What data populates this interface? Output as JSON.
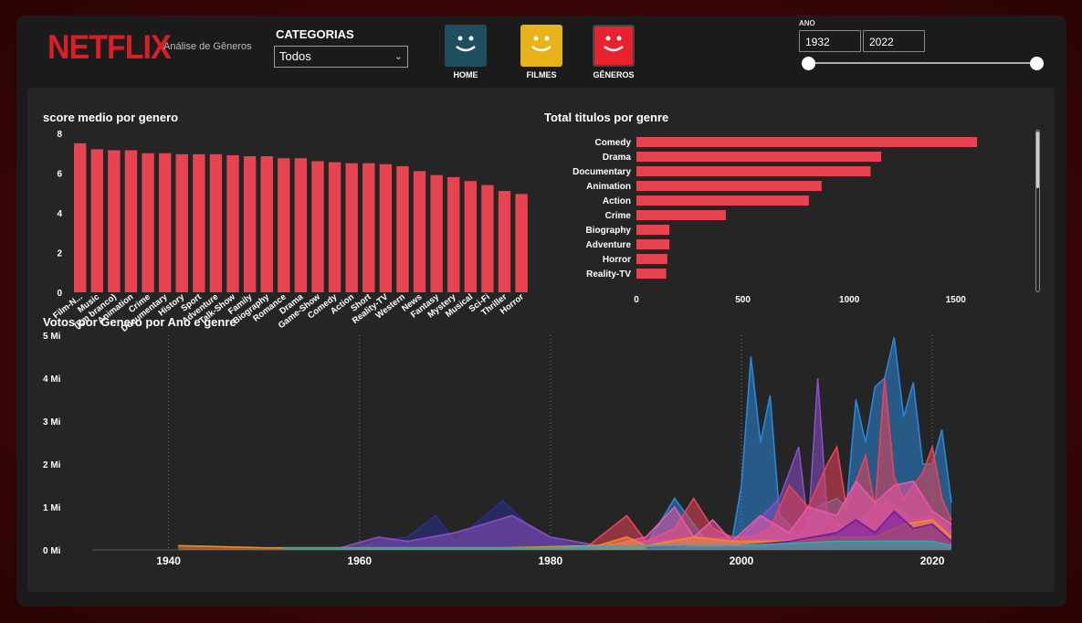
{
  "header": {
    "logo": "NETFLIX",
    "subtitle": "Análise de Gêneros",
    "category_label": "CATEGORIAS",
    "category_value": "Todos",
    "nav": [
      {
        "label": "HOME",
        "color": "#1f4e5f"
      },
      {
        "label": "FILMES",
        "color": "#e8b21a"
      },
      {
        "label": "GÊNEROS",
        "color": "#e8222e"
      }
    ],
    "year_label": "ANO",
    "year_from": "1932",
    "year_to": "2022"
  },
  "colors": {
    "accent": "#e84350",
    "background": "#252525"
  },
  "chart_data": [
    {
      "type": "bar",
      "title": "score medio por genero",
      "categories": [
        "Film-N...",
        "Music",
        "(Em branco)",
        "Animation",
        "Crime",
        "Documentary",
        "History",
        "Sport",
        "Adventure",
        "Talk-Show",
        "Family",
        "Biography",
        "Romance",
        "Drama",
        "Game-Show",
        "Comedy",
        "Action",
        "Short",
        "Reality-TV",
        "Western",
        "News",
        "Fantasy",
        "Mystery",
        "Musical",
        "Sci-Fi",
        "Thriller",
        "Horror"
      ],
      "values": [
        7.5,
        7.2,
        7.15,
        7.15,
        7.0,
        7.0,
        6.95,
        6.95,
        6.95,
        6.9,
        6.85,
        6.85,
        6.75,
        6.75,
        6.6,
        6.55,
        6.5,
        6.5,
        6.45,
        6.35,
        6.1,
        5.9,
        5.8,
        5.6,
        5.4,
        5.1,
        4.95
      ],
      "yticks": [
        "8",
        "6",
        "4",
        "2",
        "0"
      ],
      "ylim": [
        0,
        8
      ]
    },
    {
      "type": "bar",
      "orientation": "horizontal",
      "title": "Total titulos por genre",
      "categories": [
        "Comedy",
        "Drama",
        "Documentary",
        "Animation",
        "Action",
        "Crime",
        "Biography",
        "Adventure",
        "Horror",
        "Reality-TV"
      ],
      "values": [
        1600,
        1150,
        1100,
        870,
        810,
        420,
        155,
        155,
        145,
        140
      ],
      "xticks": [
        "0",
        "500",
        "1000",
        "1500"
      ],
      "xlim": [
        0,
        1750
      ]
    },
    {
      "type": "area",
      "title": "Votos por Genero por Ano e genre",
      "yticks": [
        "5 Mi",
        "4 Mi",
        "3 Mi",
        "2 Mi",
        "1 Mi",
        "0 Mi"
      ],
      "xticks": [
        "1940",
        "1960",
        "1980",
        "2000",
        "2020"
      ],
      "xlim": [
        1932,
        2022
      ],
      "ylim": [
        0,
        5
      ],
      "series": [
        {
          "color": "#2b86d8",
          "points": [
            [
              1990,
              0.1
            ],
            [
              1993,
              1.2
            ],
            [
              1996,
              0.3
            ],
            [
              1999,
              0.2
            ],
            [
              2000,
              1.5
            ],
            [
              2001,
              4.5
            ],
            [
              2002,
              2.5
            ],
            [
              2003,
              3.6
            ],
            [
              2004,
              0.8
            ],
            [
              2005,
              0.6
            ],
            [
              2006,
              0.3
            ],
            [
              2008,
              1.0
            ],
            [
              2010,
              1.2
            ],
            [
              2011,
              1.0
            ],
            [
              2012,
              3.5
            ],
            [
              2013,
              2.5
            ],
            [
              2014,
              3.8
            ],
            [
              2015,
              4.0
            ],
            [
              2016,
              4.95
            ],
            [
              2017,
              3.1
            ],
            [
              2018,
              3.9
            ],
            [
              2019,
              2.0
            ],
            [
              2020,
              2.0
            ],
            [
              2021,
              2.8
            ],
            [
              2022,
              1.1
            ]
          ]
        },
        {
          "color": "#2a2f8a",
          "points": [
            [
              1960,
              0.05
            ],
            [
              1962,
              0.2
            ],
            [
              1965,
              0.3
            ],
            [
              1968,
              0.8
            ],
            [
              1970,
              0.2
            ],
            [
              1975,
              1.15
            ],
            [
              1978,
              0.5
            ],
            [
              1982,
              0.1
            ],
            [
              1985,
              0.05
            ]
          ]
        },
        {
          "color": "#8a4fc4",
          "points": [
            [
              1958,
              0.05
            ],
            [
              1962,
              0.3
            ],
            [
              1965,
              0.2
            ],
            [
              1970,
              0.4
            ],
            [
              1976,
              0.8
            ],
            [
              1980,
              0.3
            ],
            [
              1985,
              0.1
            ],
            [
              1990,
              0.2
            ],
            [
              2000,
              0.3
            ],
            [
              2004,
              1.2
            ],
            [
              2006,
              2.4
            ],
            [
              2007,
              0.5
            ],
            [
              2008,
              4.0
            ],
            [
              2009,
              0.8
            ],
            [
              2011,
              0.5
            ],
            [
              2013,
              0.8
            ],
            [
              2015,
              1.2
            ],
            [
              2018,
              0.7
            ],
            [
              2020,
              0.8
            ],
            [
              2022,
              0.4
            ]
          ]
        },
        {
          "color": "#e8435a",
          "points": [
            [
              1984,
              0.1
            ],
            [
              1988,
              0.8
            ],
            [
              1990,
              0.2
            ],
            [
              1993,
              0.5
            ],
            [
              1995,
              1.2
            ],
            [
              1997,
              0.5
            ],
            [
              1999,
              0.3
            ],
            [
              2001,
              0.3
            ],
            [
              2003,
              0.5
            ],
            [
              2005,
              1.5
            ],
            [
              2007,
              1.0
            ],
            [
              2009,
              2.0
            ],
            [
              2010,
              2.4
            ],
            [
              2011,
              1.0
            ],
            [
              2013,
              2.2
            ],
            [
              2014,
              1.0
            ],
            [
              2015,
              4.0
            ],
            [
              2016,
              1.7
            ],
            [
              2017,
              1.2
            ],
            [
              2019,
              1.8
            ],
            [
              2020,
              2.4
            ],
            [
              2021,
              1.2
            ],
            [
              2022,
              0.7
            ]
          ]
        },
        {
          "color": "#e85aa8",
          "points": [
            [
              1985,
              0.05
            ],
            [
              1988,
              0.2
            ],
            [
              1990,
              0.3
            ],
            [
              1993,
              1.0
            ],
            [
              1995,
              0.3
            ],
            [
              1997,
              0.7
            ],
            [
              1999,
              0.2
            ],
            [
              2002,
              0.8
            ],
            [
              2005,
              0.4
            ],
            [
              2007,
              1.0
            ],
            [
              2010,
              0.8
            ],
            [
              2012,
              1.6
            ],
            [
              2014,
              1.1
            ],
            [
              2016,
              1.5
            ],
            [
              2018,
              1.6
            ],
            [
              2020,
              0.9
            ],
            [
              2022,
              0.6
            ]
          ]
        },
        {
          "color": "#f08a2a",
          "points": [
            [
              1941,
              0.1
            ],
            [
              1950,
              0.05
            ],
            [
              1960,
              0.05
            ],
            [
              1975,
              0.05
            ],
            [
              1985,
              0.1
            ],
            [
              1988,
              0.3
            ],
            [
              1990,
              0.1
            ],
            [
              1995,
              0.3
            ],
            [
              1999,
              0.2
            ],
            [
              2004,
              0.2
            ],
            [
              2010,
              0.3
            ],
            [
              2014,
              0.3
            ],
            [
              2017,
              0.6
            ],
            [
              2020,
              0.7
            ],
            [
              2022,
              0.3
            ]
          ]
        },
        {
          "color": "#6a1da0",
          "points": [
            [
              1990,
              0.05
            ],
            [
              1995,
              0.1
            ],
            [
              2000,
              0.1
            ],
            [
              2005,
              0.2
            ],
            [
              2010,
              0.4
            ],
            [
              2012,
              0.7
            ],
            [
              2014,
              0.4
            ],
            [
              2016,
              0.9
            ],
            [
              2018,
              0.5
            ],
            [
              2020,
              0.6
            ],
            [
              2022,
              0.2
            ]
          ]
        },
        {
          "color": "#2ab0a8",
          "points": [
            [
              1952,
              0.05
            ],
            [
              1965,
              0.05
            ],
            [
              1980,
              0.05
            ],
            [
              1990,
              0.1
            ],
            [
              2000,
              0.1
            ],
            [
              2010,
              0.2
            ],
            [
              2020,
              0.2
            ],
            [
              2022,
              0.1
            ]
          ]
        }
      ]
    }
  ]
}
